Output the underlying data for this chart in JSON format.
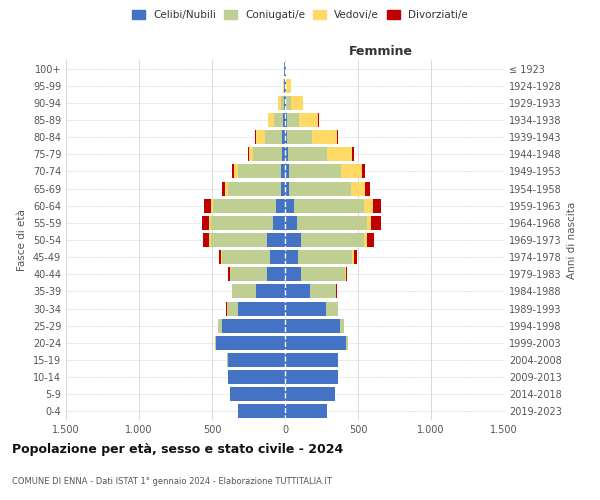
{
  "age_groups": [
    "0-4",
    "5-9",
    "10-14",
    "15-19",
    "20-24",
    "25-29",
    "30-34",
    "35-39",
    "40-44",
    "45-49",
    "50-54",
    "55-59",
    "60-64",
    "65-69",
    "70-74",
    "75-79",
    "80-84",
    "85-89",
    "90-94",
    "95-99",
    "100+"
  ],
  "birth_years": [
    "2019-2023",
    "2014-2018",
    "2009-2013",
    "2004-2008",
    "1999-2003",
    "1994-1998",
    "1989-1993",
    "1984-1988",
    "1979-1983",
    "1974-1978",
    "1969-1973",
    "1964-1968",
    "1959-1963",
    "1954-1958",
    "1949-1953",
    "1944-1948",
    "1939-1943",
    "1934-1938",
    "1929-1933",
    "1924-1928",
    "≤ 1923"
  ],
  "male": {
    "single": [
      320,
      380,
      390,
      390,
      470,
      430,
      320,
      200,
      120,
      100,
      120,
      80,
      60,
      30,
      30,
      20,
      20,
      15,
      10,
      5,
      5
    ],
    "married": [
      0,
      0,
      0,
      5,
      10,
      30,
      80,
      160,
      260,
      330,
      390,
      430,
      430,
      360,
      290,
      200,
      120,
      60,
      20,
      5,
      0
    ],
    "widowed": [
      0,
      0,
      0,
      0,
      0,
      0,
      0,
      0,
      0,
      5,
      10,
      10,
      15,
      20,
      30,
      30,
      60,
      40,
      20,
      5,
      0
    ],
    "divorced": [
      0,
      0,
      0,
      0,
      0,
      0,
      5,
      5,
      10,
      20,
      40,
      50,
      50,
      20,
      10,
      5,
      5,
      0,
      0,
      0,
      0
    ]
  },
  "female": {
    "single": [
      290,
      340,
      360,
      360,
      420,
      380,
      280,
      170,
      110,
      90,
      110,
      80,
      60,
      30,
      25,
      20,
      15,
      15,
      10,
      5,
      5
    ],
    "married": [
      0,
      0,
      0,
      5,
      10,
      25,
      80,
      180,
      300,
      370,
      430,
      480,
      480,
      420,
      360,
      270,
      170,
      80,
      30,
      5,
      0
    ],
    "widowed": [
      0,
      0,
      0,
      0,
      0,
      0,
      0,
      0,
      5,
      10,
      20,
      30,
      60,
      100,
      140,
      170,
      170,
      130,
      80,
      30,
      5
    ],
    "divorced": [
      0,
      0,
      0,
      0,
      0,
      0,
      5,
      5,
      10,
      25,
      50,
      70,
      60,
      30,
      20,
      10,
      5,
      5,
      0,
      0,
      0
    ]
  },
  "colors": {
    "single": "#4472C4",
    "married": "#BFCE93",
    "widowed": "#FFD966",
    "divorced": "#C00000"
  },
  "xlim": 1500,
  "title": "Popolazione per età, sesso e stato civile - 2024",
  "subtitle": "COMUNE DI ENNA - Dati ISTAT 1° gennaio 2024 - Elaborazione TUTTITALIA.IT",
  "ylabel_left": "Fasce di età",
  "ylabel_right": "Anni di nascita",
  "xlabel_right": "Femmine",
  "legend_labels": [
    "Celibi/Nubili",
    "Coniugati/e",
    "Vedovi/e",
    "Divorziati/e"
  ],
  "bg_color": "#ffffff",
  "grid_color": "#cccccc"
}
